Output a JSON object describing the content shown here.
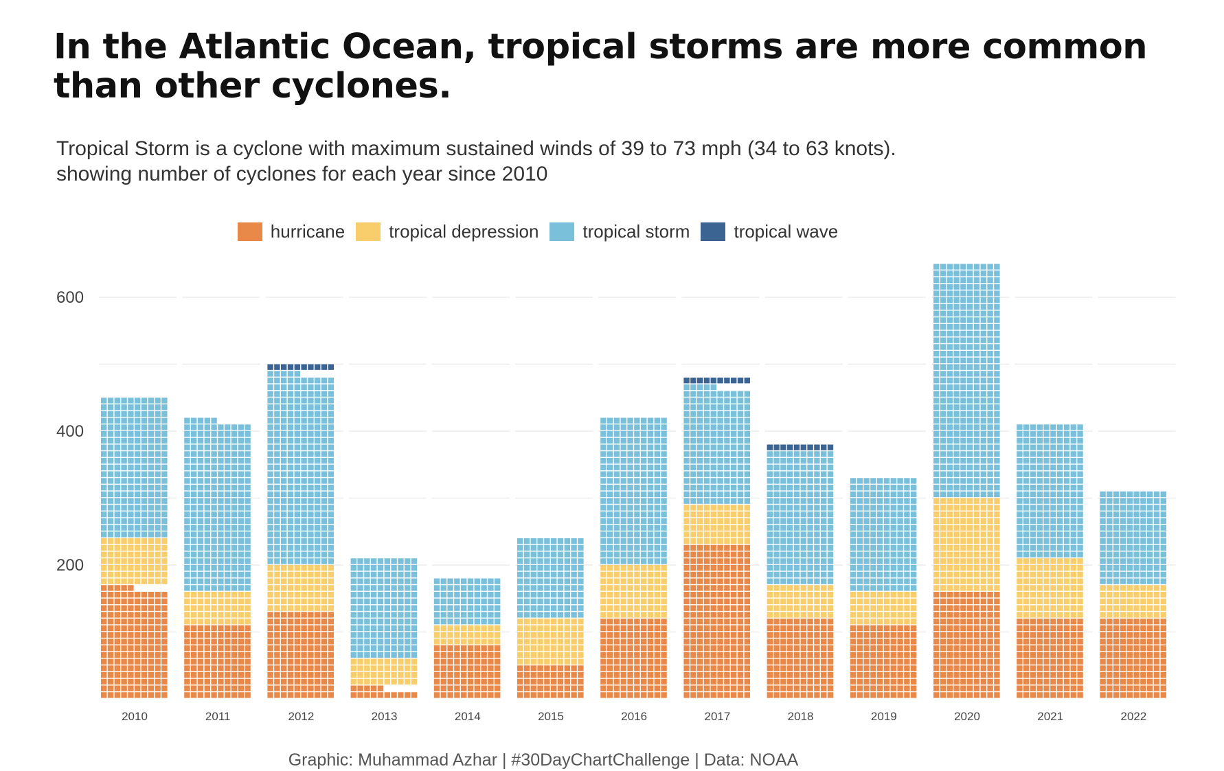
{
  "title": "In the Atlantic Ocean, tropical storms are more common than other cyclones.",
  "subtitle_line1": "Tropical Storm is a cyclone with maximum sustained winds of 39 to 73 mph (34 to 63 knots).",
  "subtitle_line2": "showing number of cyclones for each year since 2010",
  "caption": "Graphic: Muhammad Azhar | #30DayChartChallenge | Data: NOAA",
  "colors": {
    "hurricane": "#E8894A",
    "tropical_depression": "#F8CE6D",
    "tropical_storm": "#7BC0DA",
    "tropical_wave": "#3C6493",
    "grid": "#ececec",
    "cell_border": "#ffffff"
  },
  "chart_data": {
    "type": "bar",
    "stacked": true,
    "waffle_cells": true,
    "title": "In the Atlantic Ocean, tropical storms are more common than other cyclones.",
    "xlabel": "",
    "ylabel": "",
    "ylim": [
      0,
      650
    ],
    "yticks": [
      200,
      400,
      600
    ],
    "grid": true,
    "legend_position": "top",
    "categories": [
      "2010",
      "2011",
      "2012",
      "2013",
      "2014",
      "2015",
      "2016",
      "2017",
      "2018",
      "2019",
      "2020",
      "2021",
      "2022"
    ],
    "series": [
      {
        "name": "hurricane",
        "color_key": "hurricane",
        "values": [
          166,
          111,
          131,
          16,
          79,
          48,
          118,
          232,
          119,
          108,
          158,
          119,
          119
        ]
      },
      {
        "name": "tropical depression",
        "color_key": "tropical_depression",
        "values": [
          76,
          51,
          70,
          43,
          31,
          72,
          86,
          58,
          55,
          53,
          141,
          89,
          51
        ]
      },
      {
        "name": "tropical storm",
        "color_key": "tropical_storm",
        "values": [
          209,
          253,
          284,
          151,
          72,
          121,
          216,
          176,
          200,
          170,
          351,
          203,
          142
        ]
      },
      {
        "name": "tropical wave",
        "color_key": "tropical_wave",
        "values": [
          0,
          9,
          19,
          0,
          0,
          0,
          0,
          16,
          9,
          0,
          0,
          0,
          0
        ]
      }
    ]
  }
}
